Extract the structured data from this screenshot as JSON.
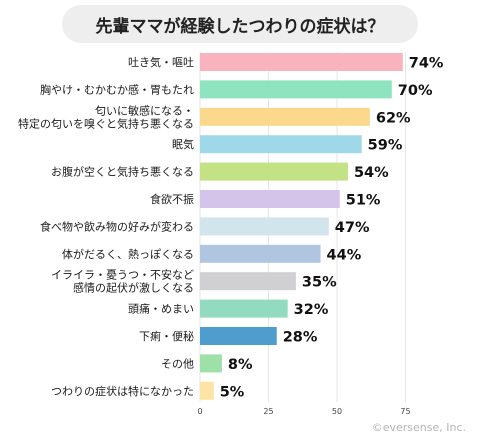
{
  "chart_data": {
    "type": "bar",
    "orientation": "horizontal",
    "title": "先輩ママが経験したつわりの症状は？",
    "categories": [
      [
        "吐き気・嘔吐"
      ],
      [
        "胸やけ・むかむか感・胃もたれ"
      ],
      [
        "匂いに敏感になる・",
        "特定の匂いを嗅ぐと気持ち悪くなる"
      ],
      [
        "眠気"
      ],
      [
        "お腹が空くと気持ち悪くなる"
      ],
      [
        "食欲不振"
      ],
      [
        "食べ物や飲み物の好みが変わる"
      ],
      [
        "体がだるく、熱っぽくなる"
      ],
      [
        "イライラ・憂うつ・不安など",
        "感情の起伏が激しくなる"
      ],
      [
        "頭痛・めまい"
      ],
      [
        "下痢・便秘"
      ],
      [
        "その他"
      ],
      [
        "つわりの症状は特になかった"
      ]
    ],
    "values": [
      74,
      70,
      62,
      59,
      54,
      51,
      47,
      44,
      35,
      32,
      28,
      8,
      5
    ],
    "value_labels": [
      "74%",
      "70%",
      "62%",
      "59%",
      "54%",
      "51%",
      "47%",
      "44%",
      "35%",
      "32%",
      "28%",
      "8%",
      "5%"
    ],
    "colors": [
      "#f9b3bf",
      "#8de4be",
      "#fad98c",
      "#9fd8e8",
      "#c3e286",
      "#d4c4ea",
      "#d3e5ec",
      "#afc5e0",
      "#d0d0d2",
      "#92dbc1",
      "#4f9dcc",
      "#9fe0a9",
      "#fde4a4"
    ],
    "xlim": [
      0,
      100
    ],
    "xticks": [
      0,
      25,
      50,
      75
    ],
    "grid": true,
    "legend": "none"
  },
  "footer": {
    "credit": "©eversense, Inc."
  }
}
